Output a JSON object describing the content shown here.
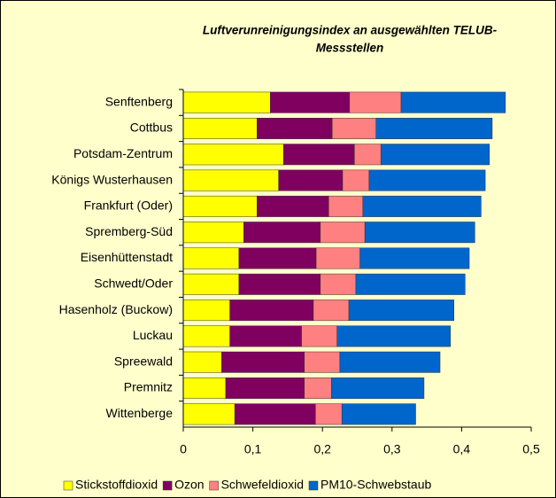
{
  "chart_data": {
    "type": "stacked-bar-horizontal",
    "title": [
      "Luftverunreinigungsindex an ausgewählten TELUB-",
      "Messstellen"
    ],
    "categories": [
      "Senftenberg",
      "Cottbus",
      "Potsdam-Zentrum",
      "Königs Wusterhausen",
      "Frankfurt (Oder)",
      "Spremberg-Süd",
      "Eisenhüttenstadt",
      "Schwedt/Oder",
      "Hasenholz (Buckow)",
      "Luckau",
      "Spreewald",
      "Premnitz",
      "Wittenberge"
    ],
    "series": [
      {
        "name": "Stickstoffdioxid",
        "color": "#ffff00",
        "values": [
          0.125,
          0.106,
          0.144,
          0.137,
          0.106,
          0.087,
          0.08,
          0.08,
          0.067,
          0.067,
          0.055,
          0.061,
          0.074
        ]
      },
      {
        "name": "Ozon",
        "color": "#800060",
        "values": [
          0.114,
          0.108,
          0.102,
          0.092,
          0.103,
          0.11,
          0.111,
          0.117,
          0.12,
          0.103,
          0.119,
          0.113,
          0.116
        ]
      },
      {
        "name": "Schwefeldioxid",
        "color": "#ff8080",
        "values": [
          0.074,
          0.063,
          0.038,
          0.038,
          0.049,
          0.064,
          0.063,
          0.051,
          0.051,
          0.051,
          0.051,
          0.039,
          0.038
        ]
      },
      {
        "name": "PM10-Schwebstaub",
        "color": "#0066cc",
        "values": [
          0.15,
          0.167,
          0.156,
          0.167,
          0.17,
          0.158,
          0.157,
          0.157,
          0.151,
          0.163,
          0.144,
          0.133,
          0.106
        ]
      }
    ],
    "xlim": [
      0,
      0.5
    ],
    "xticks": [
      0,
      {
        "value": 0.1,
        "label": "0,1"
      },
      {
        "value": 0.2,
        "label": "0,2"
      },
      {
        "value": 0.3,
        "label": "0,3"
      },
      {
        "value": 0.4,
        "label": "0,4"
      },
      {
        "value": 0.5,
        "label": "0,5"
      }
    ],
    "legend": "bottom"
  }
}
